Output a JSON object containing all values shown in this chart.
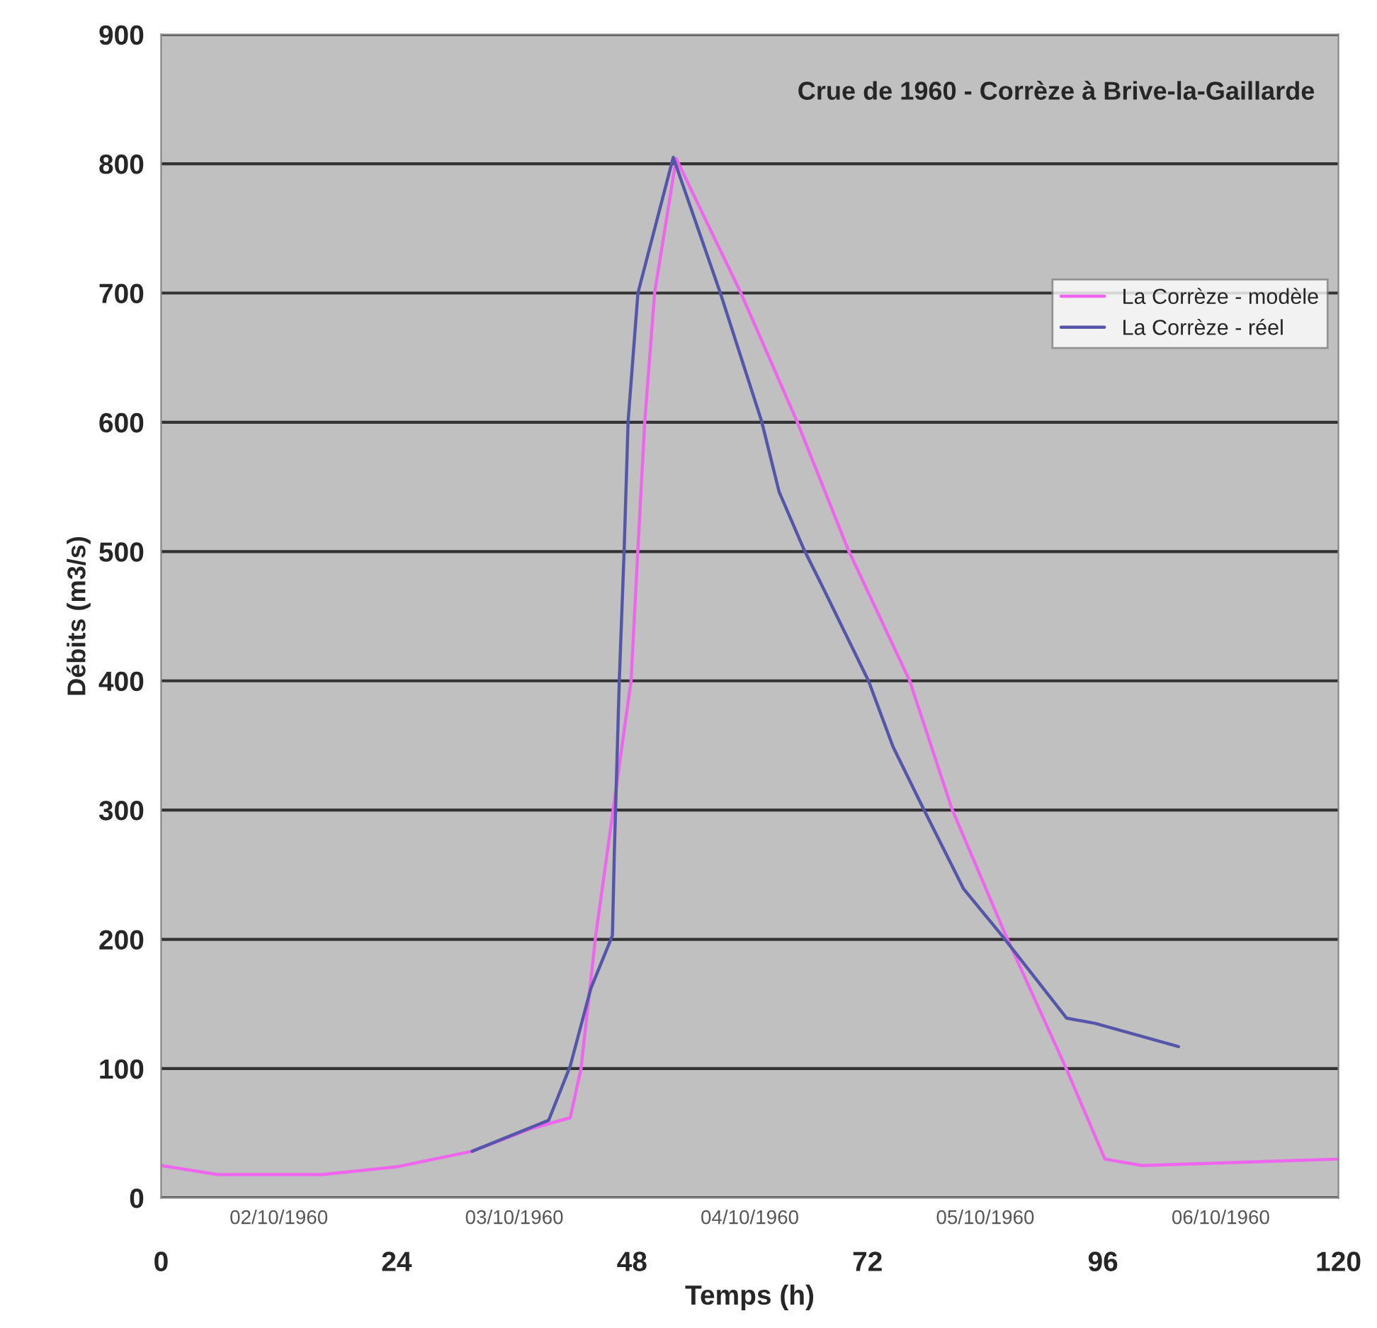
{
  "chart_data": {
    "type": "line",
    "title": "Crue de 1960 - Corrèze à Brive-la-Gaillarde",
    "xlabel": "Temps (h)",
    "ylabel": "Débits (m3/s)",
    "series": [
      {
        "name": "La Corrèze - modèle",
        "color": "#ee66ee",
        "x": [
          0,
          5.8,
          16.4,
          24,
          31.7,
          37.5,
          41.7,
          42.8,
          44.3,
          47.9,
          48.6,
          49.3,
          50.3,
          52.5,
          59.1,
          64.8,
          70,
          76.3,
          80.6,
          86.1,
          92.2,
          96.2,
          100,
          120
        ],
        "values": [
          25,
          18,
          18,
          24,
          36,
          53,
          62,
          100,
          203,
          400,
          502,
          601,
          700,
          804,
          700,
          601,
          502,
          400,
          301,
          203,
          101,
          30,
          25,
          30
        ]
      },
      {
        "name": "La Corrèze - réel",
        "color": "#5555aa",
        "x": [
          31.7,
          39.5,
          41.7,
          43.8,
          46,
          46.2,
          46.7,
          47.2,
          47.6,
          48.6,
          52.2,
          57,
          61.2,
          63,
          65.5,
          67.4,
          72.1,
          74.6,
          77.7,
          81.8,
          85.7,
          92.3,
          95.2,
          103.7
        ],
        "values": [
          36,
          60,
          102,
          162,
          203,
          269,
          400,
          502,
          601,
          700,
          805,
          700,
          601,
          546,
          502,
          473,
          400,
          349,
          301,
          239,
          203,
          139,
          135,
          117
        ]
      }
    ],
    "xlim": [
      0,
      120
    ],
    "xticks": [
      0,
      24,
      48,
      72,
      96,
      120
    ],
    "annotations": [
      "02/10/1960",
      "03/10/1960",
      "04/10/1960",
      "05/10/1960",
      "06/10/1960"
    ],
    "ylim": [
      0,
      900
    ],
    "yticks": [
      0,
      100,
      200,
      300,
      400,
      500,
      600,
      700,
      800,
      900
    ],
    "grid": "y",
    "legend": "right",
    "marker": "none",
    "line_style": "solid"
  }
}
